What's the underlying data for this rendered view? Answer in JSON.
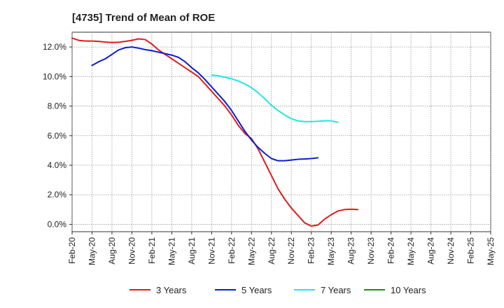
{
  "chart_data": {
    "type": "line",
    "title": "[4735]  Trend of Mean of ROE",
    "xlabel": "",
    "ylabel": "",
    "ylim": [
      -0.5,
      13.0
    ],
    "grid": true,
    "legend_position": "bottom",
    "x_ticks": [
      "Feb-20",
      "May-20",
      "Aug-20",
      "Nov-20",
      "Feb-21",
      "May-21",
      "Aug-21",
      "Nov-21",
      "Feb-22",
      "May-22",
      "Aug-22",
      "Nov-22",
      "Feb-23",
      "May-23",
      "Aug-23",
      "Nov-23",
      "Feb-24",
      "May-24",
      "Aug-24",
      "Nov-24",
      "Feb-25",
      "May-25"
    ],
    "y_ticks": [
      0,
      2,
      4,
      6,
      8,
      10,
      12
    ],
    "y_tick_labels": [
      "0.0%",
      "2.0%",
      "4.0%",
      "6.0%",
      "8.0%",
      "10.0%",
      "12.0%"
    ],
    "series": [
      {
        "name": "3 Years",
        "color": "#e31a1c",
        "start_index": 0,
        "values": [
          12.6,
          12.45,
          12.4,
          12.4,
          12.38,
          12.33,
          12.3,
          12.32,
          12.38,
          12.45,
          12.55,
          12.5,
          12.2,
          11.8,
          11.5,
          11.2,
          10.9,
          10.6,
          10.3,
          10.0,
          9.5,
          9.0,
          8.5,
          8.0,
          7.4,
          6.7,
          6.15,
          5.8,
          5.1,
          4.2,
          3.3,
          2.4,
          1.7,
          1.1,
          0.6,
          0.1,
          -0.12,
          -0.05,
          0.35,
          0.65,
          0.9,
          1.0,
          1.02,
          1.0
        ]
      },
      {
        "name": "5 Years",
        "color": "#0a1fd0",
        "start_index": 3,
        "values": [
          10.75,
          11.0,
          11.2,
          11.5,
          11.8,
          11.95,
          12.0,
          11.92,
          11.82,
          11.75,
          11.65,
          11.55,
          11.45,
          11.3,
          11.0,
          10.6,
          10.25,
          9.8,
          9.3,
          8.8,
          8.3,
          7.7,
          7.0,
          6.3,
          5.7,
          5.2,
          4.8,
          4.45,
          4.3,
          4.3,
          4.35,
          4.4,
          4.42,
          4.45,
          4.5
        ]
      },
      {
        "name": "7 Years",
        "color": "#22e5e5",
        "start_index": 21,
        "values": [
          10.1,
          10.05,
          9.95,
          9.85,
          9.7,
          9.5,
          9.25,
          8.9,
          8.5,
          8.05,
          7.7,
          7.4,
          7.15,
          7.0,
          6.95,
          6.95,
          6.97,
          7.0,
          7.0,
          6.9
        ]
      },
      {
        "name": "10 Years",
        "color": "#1a8c1a",
        "start_index": 0,
        "values": []
      }
    ]
  }
}
